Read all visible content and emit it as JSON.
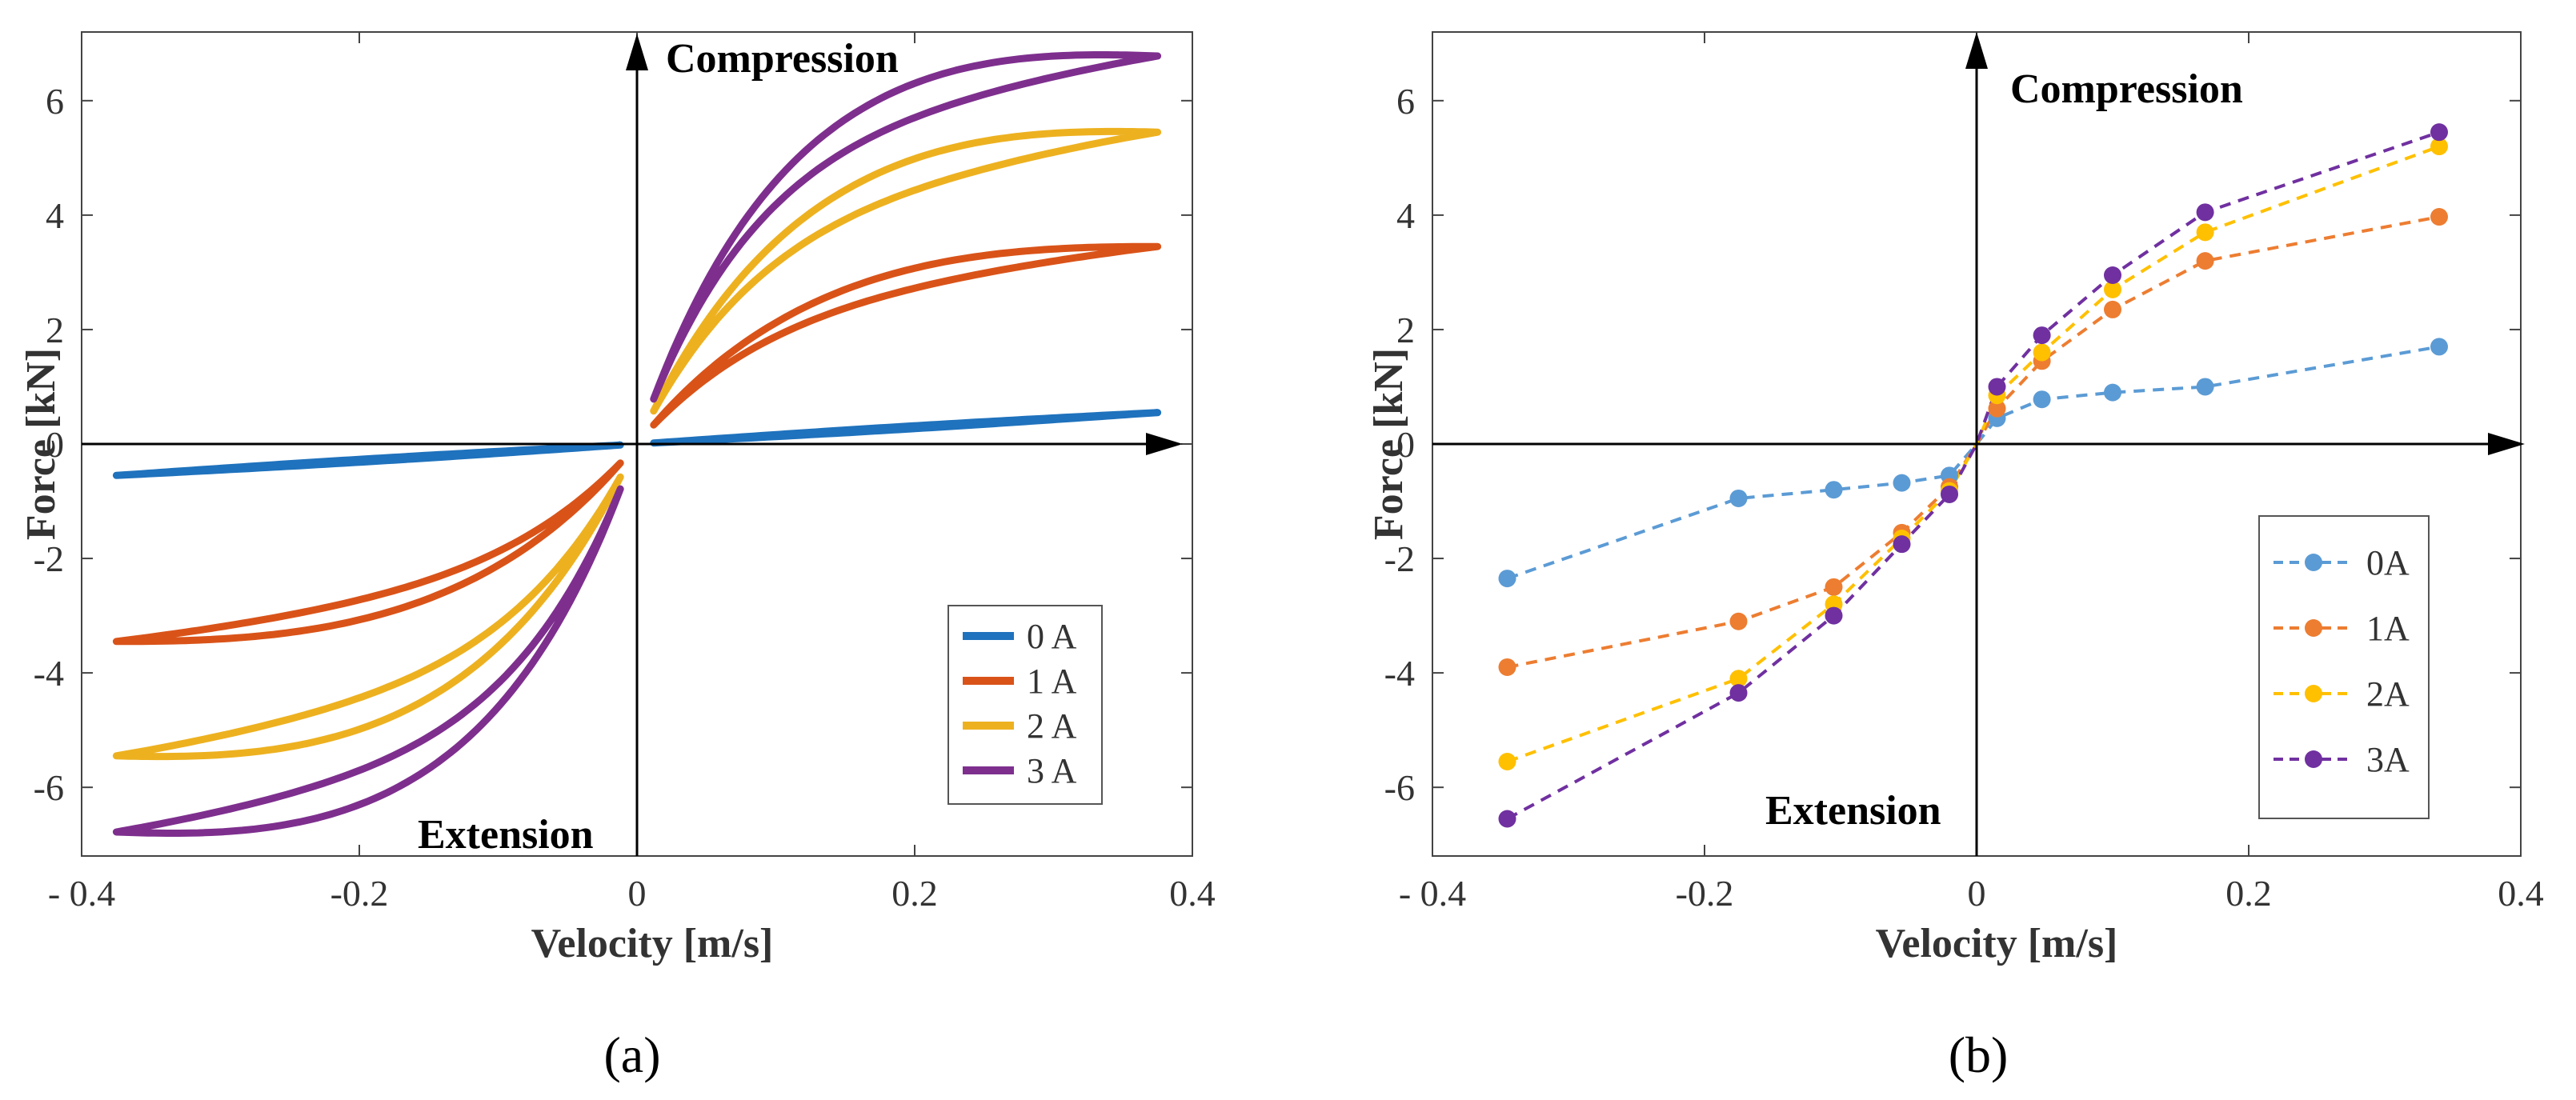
{
  "figure_labels": {
    "a": "(a)",
    "b": "(b)"
  },
  "chart_data": [
    {
      "type": "line",
      "panel": "a",
      "xlabel": "Velocity [m/s]",
      "ylabel": "Force [kN]",
      "xlim": [
        -0.4,
        0.4
      ],
      "ylim": [
        -7.2,
        7.2
      ],
      "xticks": [
        -0.4,
        -0.2,
        0,
        0.2,
        0.4
      ],
      "xtick_labels": [
        "- 0.4",
        "-0.2",
        "0",
        "0.2",
        "0.4"
      ],
      "yticks": [
        -6,
        -4,
        -2,
        0,
        2,
        4,
        6
      ],
      "ytick_labels": [
        "-6",
        "-4",
        "-2",
        "0",
        "2",
        "4",
        "6"
      ],
      "grid": false,
      "legend_position": "bottom-right",
      "annotations": {
        "top": "Compression",
        "bottom": "Extension"
      },
      "series": [
        {
          "name": "0 A",
          "color": "#1f72bd",
          "vmax": 0.375,
          "fmax": 0.55,
          "width": 0.05,
          "k": 0
        },
        {
          "name": "1 A",
          "color": "#d95319",
          "vmax": 0.375,
          "fmax": 3.45,
          "width": 0.35,
          "k": 8
        },
        {
          "name": "2 A",
          "color": "#edb120",
          "vmax": 0.375,
          "fmax": 5.45,
          "width": 0.55,
          "k": 9
        },
        {
          "name": "3 A",
          "color": "#7e2f8e",
          "vmax": 0.375,
          "fmax": 6.78,
          "width": 0.6,
          "k": 10
        }
      ]
    },
    {
      "type": "line",
      "panel": "b",
      "xlabel": "Velocity [m/s]",
      "ylabel": "Force [kN]",
      "xlim": [
        -0.4,
        0.4
      ],
      "ylim": [
        -7.2,
        7.2
      ],
      "xticks": [
        -0.4,
        -0.2,
        0,
        0.2,
        0.4
      ],
      "xtick_labels": [
        "- 0.4",
        "-0.2",
        "0",
        "0.2",
        "0.4"
      ],
      "yticks": [
        -6,
        -4,
        -2,
        0,
        2,
        4,
        6
      ],
      "ytick_labels": [
        "-6",
        "-4",
        "-2",
        "0",
        "2",
        "4",
        "6"
      ],
      "grid": false,
      "legend_position": "right",
      "annotations": {
        "top": "Compression",
        "bottom": "Extension"
      },
      "x": [
        -0.345,
        -0.175,
        -0.105,
        -0.055,
        -0.02,
        0,
        0.015,
        0.048,
        0.1,
        0.168,
        0.34
      ],
      "series": [
        {
          "name": "0A",
          "color": "#5b9bd5",
          "values": [
            -2.35,
            -0.95,
            -0.8,
            -0.68,
            -0.55,
            0,
            0.45,
            0.78,
            0.9,
            1.0,
            1.7
          ]
        },
        {
          "name": "1A",
          "color": "#ed7d31",
          "values": [
            -3.9,
            -3.1,
            -2.5,
            -1.55,
            -0.75,
            0,
            0.62,
            1.45,
            2.35,
            3.2,
            3.97
          ]
        },
        {
          "name": "2A",
          "color": "#ffc000",
          "values": [
            -5.55,
            -4.1,
            -2.8,
            -1.65,
            -0.82,
            0,
            0.85,
            1.6,
            2.7,
            3.7,
            5.2
          ]
        },
        {
          "name": "3A",
          "color": "#7030a0",
          "values": [
            -6.55,
            -4.35,
            -3.0,
            -1.75,
            -0.88,
            0,
            1.0,
            1.9,
            2.95,
            4.05,
            5.45
          ]
        }
      ]
    }
  ]
}
